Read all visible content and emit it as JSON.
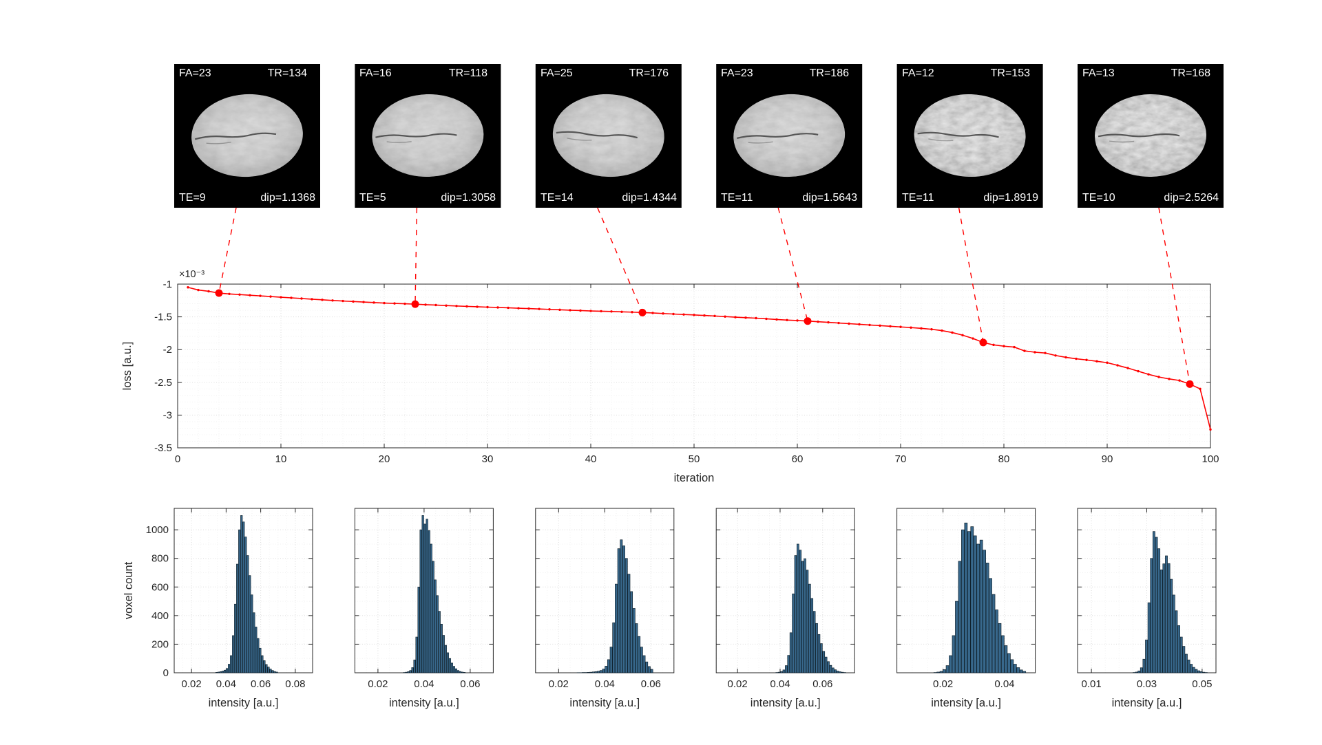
{
  "colors": {
    "loss_line": "#ff0000",
    "marker": "#ff0000",
    "histogram_bar": "#38688c",
    "histogram_edge": "#10222e",
    "panel_background": "#000000",
    "panel_text": "#ffffff",
    "axis_text": "#262626",
    "grid": "#dbdbdb"
  },
  "panels": [
    {
      "top_left": "FA=23",
      "top_right": "TR=134",
      "bottom_left": "TE=9",
      "bottom_right": "dip=1.1368"
    },
    {
      "top_left": "FA=16",
      "top_right": "TR=118",
      "bottom_left": "TE=5",
      "bottom_right": "dip=1.3058"
    },
    {
      "top_left": "FA=25",
      "top_right": "TR=176",
      "bottom_left": "TE=14",
      "bottom_right": "dip=1.4344"
    },
    {
      "top_left": "FA=23",
      "top_right": "TR=186",
      "bottom_left": "TE=11",
      "bottom_right": "dip=1.5643"
    },
    {
      "top_left": "FA=12",
      "top_right": "TR=153",
      "bottom_left": "TE=11",
      "bottom_right": "dip=1.8919"
    },
    {
      "top_left": "FA=13",
      "top_right": "TR=168",
      "bottom_left": "TE=10",
      "bottom_right": "dip=2.5264"
    }
  ],
  "chart_data": [
    {
      "type": "line",
      "xlabel": "iteration",
      "ylabel": "loss [a.u.]",
      "y_exponent_label": "×10⁻³",
      "xlim": [
        0,
        100
      ],
      "ylim": [
        -3.5,
        -1
      ],
      "xticks": [
        0,
        10,
        20,
        30,
        40,
        50,
        60,
        70,
        80,
        90,
        100
      ],
      "yticks": [
        -3.5,
        -3,
        -2.5,
        -2,
        -1.5,
        -1
      ],
      "grid": true,
      "x_start": 1,
      "x_step": 1,
      "y": [
        -1.05,
        -1.09,
        -1.11,
        -1.1368,
        -1.15,
        -1.16,
        -1.17,
        -1.18,
        -1.19,
        -1.2,
        -1.21,
        -1.22,
        -1.23,
        -1.24,
        -1.25,
        -1.258,
        -1.266,
        -1.274,
        -1.282,
        -1.29,
        -1.295,
        -1.3,
        -1.3058,
        -1.314,
        -1.32,
        -1.328,
        -1.334,
        -1.34,
        -1.346,
        -1.352,
        -1.357,
        -1.362,
        -1.368,
        -1.374,
        -1.38,
        -1.386,
        -1.392,
        -1.398,
        -1.404,
        -1.41,
        -1.414,
        -1.418,
        -1.423,
        -1.428,
        -1.4344,
        -1.441,
        -1.449,
        -1.457,
        -1.464,
        -1.471,
        -1.479,
        -1.487,
        -1.496,
        -1.505,
        -1.513,
        -1.52,
        -1.53,
        -1.54,
        -1.549,
        -1.556,
        -1.5643,
        -1.574,
        -1.584,
        -1.594,
        -1.604,
        -1.614,
        -1.624,
        -1.634,
        -1.644,
        -1.654,
        -1.664,
        -1.676,
        -1.69,
        -1.71,
        -1.74,
        -1.78,
        -1.83,
        -1.8919,
        -1.928,
        -1.948,
        -1.962,
        -2.02,
        -2.04,
        -2.052,
        -2.09,
        -2.118,
        -2.14,
        -2.158,
        -2.178,
        -2.2,
        -2.24,
        -2.282,
        -2.33,
        -2.378,
        -2.418,
        -2.448,
        -2.472,
        -2.5264,
        -2.6,
        -3.22
      ],
      "marked_points": [
        {
          "x": 4,
          "y": -1.1368
        },
        {
          "x": 23,
          "y": -1.3058
        },
        {
          "x": 45,
          "y": -1.4344
        },
        {
          "x": 61,
          "y": -1.5643
        },
        {
          "x": 78,
          "y": -1.8919
        },
        {
          "x": 98,
          "y": -2.5264
        }
      ]
    },
    {
      "type": "bar",
      "xlabel": "intensity [a.u.]",
      "ylabel": "voxel count",
      "xlim": [
        0.01,
        0.09
      ],
      "ylim": [
        0,
        1150
      ],
      "xticks": [
        0.02,
        0.04,
        0.06,
        0.08
      ],
      "yticks": [
        0,
        200,
        400,
        600,
        800,
        1000
      ],
      "grid": true,
      "bin_start": 0.034,
      "bin_width": 0.0012,
      "counts": [
        3,
        5,
        8,
        12,
        18,
        30,
        60,
        120,
        260,
        480,
        760,
        1000,
        1100,
        1055,
        950,
        820,
        680,
        545,
        420,
        320,
        240,
        172,
        120,
        85,
        58,
        40,
        26,
        16,
        9,
        5
      ]
    },
    {
      "type": "bar",
      "xlabel": "intensity [a.u.]",
      "xlim": [
        0.01,
        0.07
      ],
      "ylim": [
        0,
        1150
      ],
      "xticks": [
        0.02,
        0.04,
        0.06
      ],
      "yticks": [
        0,
        200,
        400,
        600,
        800,
        1000
      ],
      "grid": true,
      "bin_start": 0.031,
      "bin_width": 0.0009,
      "counts": [
        2,
        4,
        8,
        16,
        36,
        90,
        250,
        600,
        1000,
        1100,
        1040,
        1075,
        995,
        900,
        780,
        650,
        540,
        430,
        340,
        262,
        192,
        140,
        100,
        68,
        45,
        28,
        16,
        9,
        5,
        3
      ]
    },
    {
      "type": "bar",
      "xlabel": "intensity [a.u.]",
      "xlim": [
        0.01,
        0.07
      ],
      "ylim": [
        0,
        1150
      ],
      "xticks": [
        0.02,
        0.04,
        0.06
      ],
      "yticks": [
        0,
        200,
        400,
        600,
        800,
        1000
      ],
      "grid": true,
      "bin_start": 0.028,
      "bin_width": 0.0011,
      "counts": [
        1,
        1,
        2,
        2,
        3,
        4,
        6,
        8,
        11,
        16,
        26,
        46,
        92,
        180,
        350,
        620,
        868,
        930,
        888,
        800,
        690,
        568,
        450,
        344,
        254,
        180,
        120,
        76,
        44,
        24
      ]
    },
    {
      "type": "bar",
      "xlabel": "intensity [a.u.]",
      "xlim": [
        0.01,
        0.075
      ],
      "ylim": [
        0,
        1150
      ],
      "xticks": [
        0.02,
        0.04,
        0.06
      ],
      "yticks": [
        0,
        200,
        400,
        600,
        800,
        1000
      ],
      "grid": true,
      "bin_start": 0.038,
      "bin_width": 0.0011,
      "counts": [
        2,
        4,
        9,
        20,
        50,
        122,
        280,
        552,
        820,
        900,
        858,
        780,
        798,
        718,
        620,
        520,
        430,
        345,
        268,
        204,
        150,
        110,
        78,
        52,
        34,
        21,
        12,
        7,
        4,
        2
      ]
    },
    {
      "type": "bar",
      "xlabel": "intensity [a.u.]",
      "xlim": [
        0.005,
        0.05
      ],
      "ylim": [
        0,
        1150
      ],
      "xticks": [
        0.02,
        0.04
      ],
      "yticks": [
        0,
        200,
        400,
        600,
        800,
        1000
      ],
      "grid": true,
      "bin_start": 0.017,
      "bin_width": 0.001,
      "counts": [
        2,
        5,
        10,
        22,
        50,
        120,
        260,
        500,
        780,
        1000,
        1048,
        988,
        1022,
        958,
        900,
        928,
        858,
        768,
        660,
        548,
        440,
        345,
        260,
        190,
        135,
        92,
        60,
        36,
        20,
        10
      ]
    },
    {
      "type": "bar",
      "xlabel": "intensity [a.u.]",
      "xlim": [
        0.005,
        0.055
      ],
      "ylim": [
        0,
        1150
      ],
      "xticks": [
        0.01,
        0.03,
        0.05
      ],
      "yticks": [
        0,
        200,
        400,
        600,
        800,
        1000
      ],
      "grid": true,
      "bin_start": 0.025,
      "bin_width": 0.0009,
      "counts": [
        2,
        5,
        13,
        35,
        95,
        230,
        490,
        800,
        988,
        948,
        868,
        720,
        762,
        818,
        764,
        654,
        544,
        434,
        330,
        250,
        185,
        130,
        90,
        60,
        38,
        24,
        14,
        8,
        4,
        2
      ]
    }
  ]
}
